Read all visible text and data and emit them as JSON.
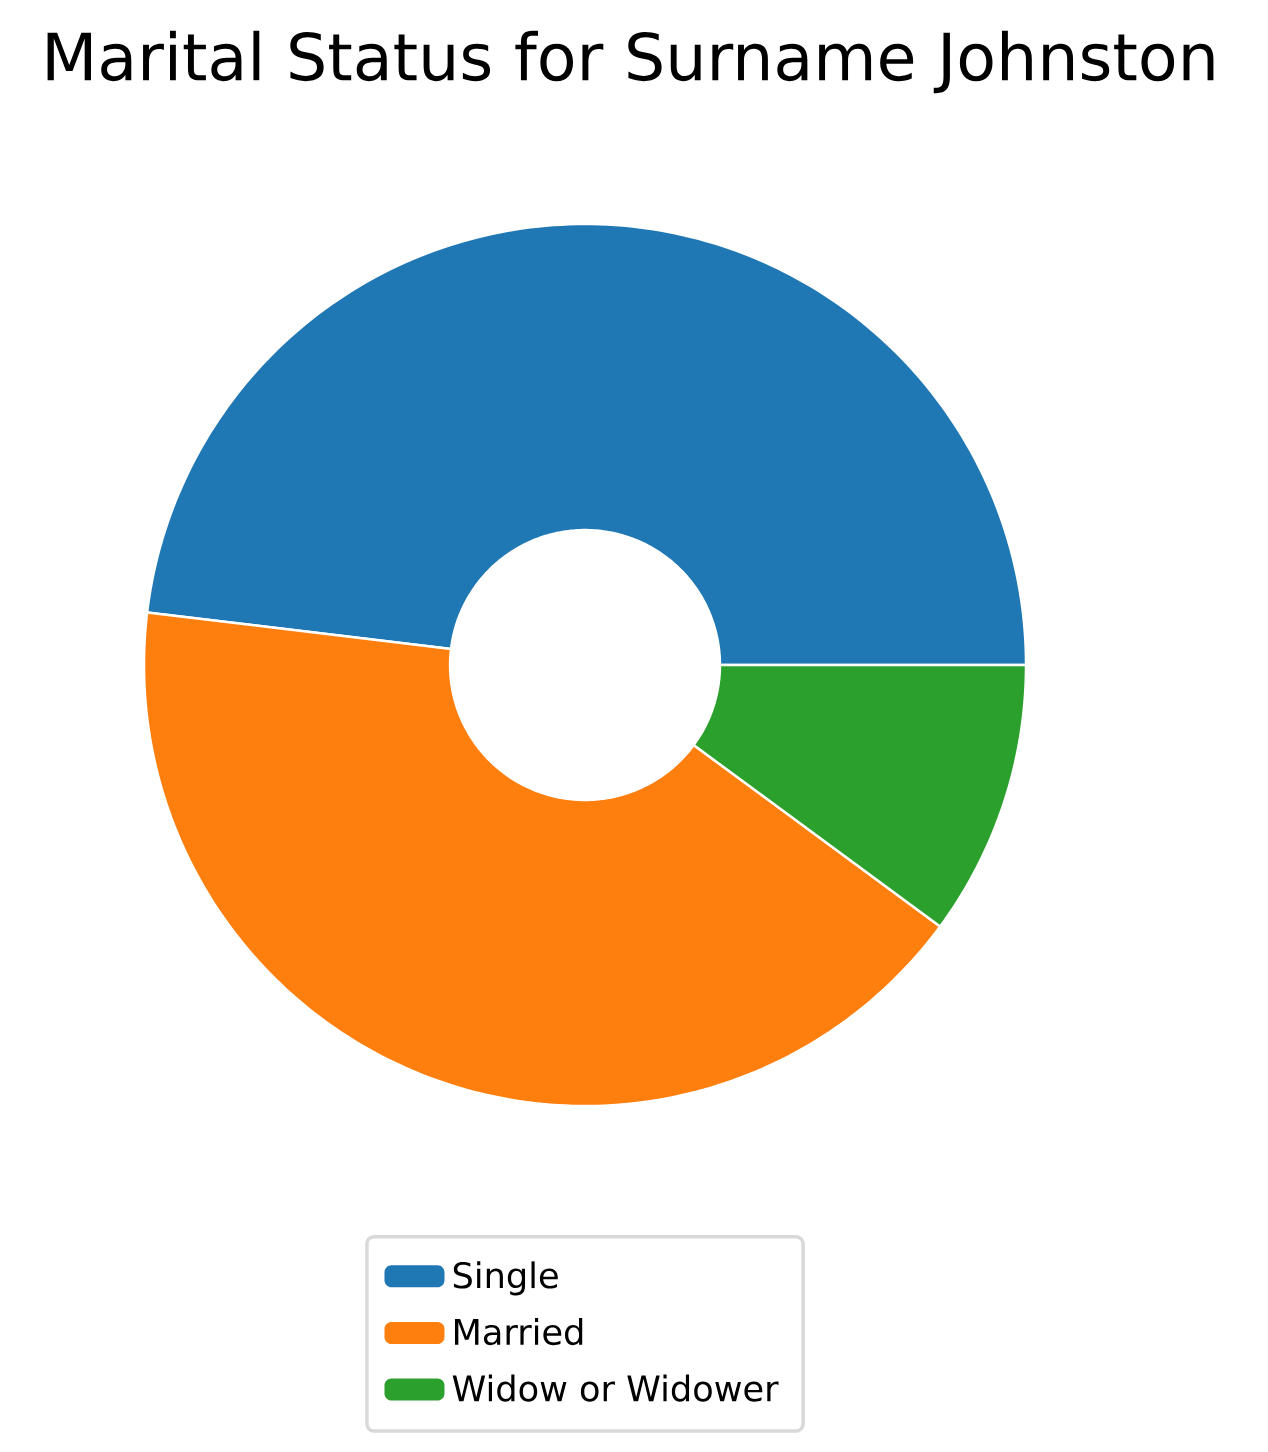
{
  "chart_data": {
    "type": "donut",
    "title": "Marital Status for Surname Johnston",
    "categories": [
      "Single",
      "Married",
      "Widow or Widower"
    ],
    "values": [
      48.1,
      41.8,
      10.1
    ],
    "colors": [
      "#1f77b4",
      "#ff7f0e",
      "#2ca02c"
    ],
    "legend": "bottom"
  }
}
